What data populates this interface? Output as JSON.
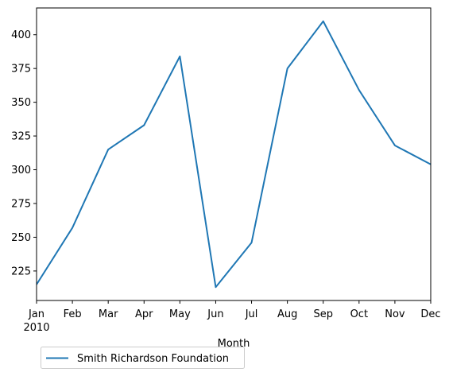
{
  "chart_data": {
    "type": "line",
    "title": "",
    "xlabel": "Month",
    "ylabel": "",
    "year_label": "2010",
    "categories": [
      "Jan",
      "Feb",
      "Mar",
      "Apr",
      "May",
      "Jun",
      "Jul",
      "Aug",
      "Sep",
      "Oct",
      "Nov",
      "Dec"
    ],
    "series": [
      {
        "name": "Smith Richardson Foundation",
        "color": "#1f77b4",
        "values": [
          215,
          257,
          315,
          333,
          384,
          213,
          246,
          375,
          410,
          359,
          318,
          304
        ]
      }
    ],
    "yticks": [
      225,
      250,
      275,
      300,
      325,
      350,
      375,
      400
    ],
    "ylim": [
      203.15,
      419.85
    ],
    "grid": false,
    "legend_position": "bottom-left, below the axes"
  }
}
